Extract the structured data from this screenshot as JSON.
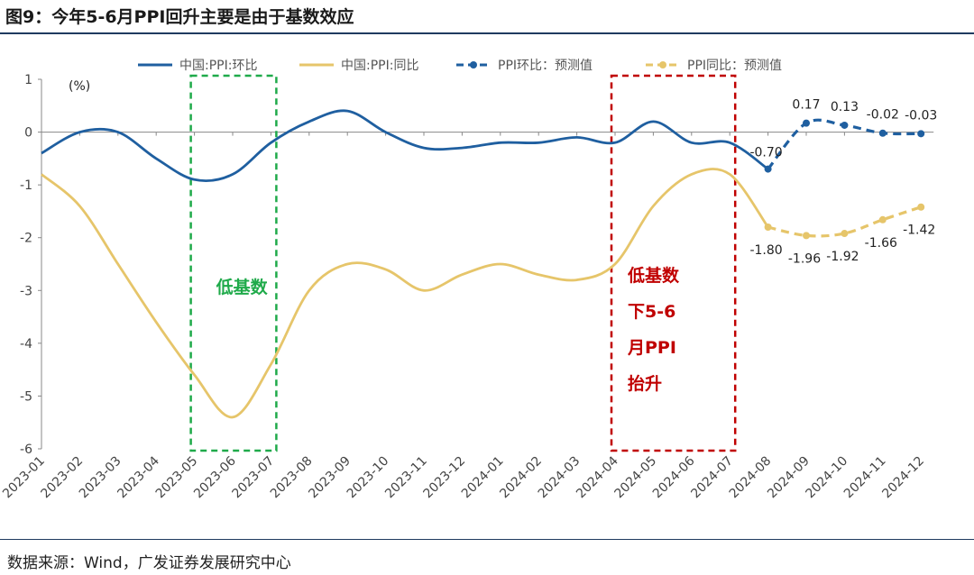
{
  "title": "图9：今年5-6月PPI回升主要是由于基数效应",
  "source": "数据来源：Wind，广发证券发展研究中心",
  "colors": {
    "mom": "#1f5fa0",
    "yoy": "#e6c56a",
    "green_box": "#1faa4a",
    "red_box": "#c00000"
  },
  "chart_data": {
    "type": "line",
    "unit_label": "(%)",
    "ylim": [
      -6,
      1
    ],
    "yticks": [
      1,
      0,
      -1,
      -2,
      -3,
      -4,
      -5,
      -6
    ],
    "categories": [
      "2023-01",
      "2023-02",
      "2023-03",
      "2023-04",
      "2023-05",
      "2023-06",
      "2023-07",
      "2023-08",
      "2023-09",
      "2023-10",
      "2023-11",
      "2023-12",
      "2024-01",
      "2024-02",
      "2024-03",
      "2024-04",
      "2024-05",
      "2024-06",
      "2024-07",
      "2024-08",
      "2024-09",
      "2024-10",
      "2024-11",
      "2024-12"
    ],
    "legend_position": "top",
    "series": [
      {
        "name": "中国:PPI:环比",
        "style": "solid",
        "color": "#1f5fa0",
        "values": [
          -0.4,
          0.0,
          0.0,
          -0.5,
          -0.9,
          -0.8,
          -0.2,
          0.2,
          0.4,
          0.0,
          -0.3,
          -0.3,
          -0.2,
          -0.2,
          -0.1,
          -0.2,
          0.2,
          -0.2,
          -0.2,
          -0.7,
          null,
          null,
          null,
          null
        ]
      },
      {
        "name": "中国:PPI:同比",
        "style": "solid",
        "color": "#e6c56a",
        "values": [
          -0.8,
          -1.4,
          -2.5,
          -3.6,
          -4.6,
          -5.4,
          -4.4,
          -3.0,
          -2.5,
          -2.6,
          -3.0,
          -2.7,
          -2.5,
          -2.7,
          -2.8,
          -2.5,
          -1.4,
          -0.8,
          -0.8,
          -1.8,
          null,
          null,
          null,
          null
        ]
      },
      {
        "name": "PPI环比：预测值",
        "style": "dashed",
        "color": "#1f5fa0",
        "values": [
          null,
          null,
          null,
          null,
          null,
          null,
          null,
          null,
          null,
          null,
          null,
          null,
          null,
          null,
          null,
          null,
          null,
          null,
          null,
          -0.7,
          0.17,
          0.13,
          -0.02,
          -0.03
        ]
      },
      {
        "name": "PPI同比：预测值",
        "style": "dashed",
        "color": "#e6c56a",
        "values": [
          null,
          null,
          null,
          null,
          null,
          null,
          null,
          null,
          null,
          null,
          null,
          null,
          null,
          null,
          null,
          null,
          null,
          null,
          null,
          -1.8,
          -1.96,
          -1.92,
          -1.66,
          -1.42
        ]
      }
    ],
    "data_labels": {
      "mom": [
        {
          "index": 19,
          "text": "-0.70"
        },
        {
          "index": 20,
          "text": "0.17"
        },
        {
          "index": 21,
          "text": "0.13"
        },
        {
          "index": 22,
          "text": "-0.02"
        },
        {
          "index": 23,
          "text": "-0.03"
        }
      ],
      "yoy": [
        {
          "index": 19,
          "text": "-1.80"
        },
        {
          "index": 20,
          "text": "-1.96"
        },
        {
          "index": 21,
          "text": "-1.92"
        },
        {
          "index": 22,
          "text": "-1.66"
        },
        {
          "index": 23,
          "text": "-1.42"
        }
      ]
    },
    "annotations": [
      {
        "id": "green",
        "text_lines": [
          "低基数"
        ],
        "from_category": "2023-05",
        "to_category": "2023-07"
      },
      {
        "id": "red",
        "text_lines": [
          "低基数",
          "下5-6",
          "月PPI",
          "抬升"
        ],
        "from_category": "2024-04",
        "to_category": "2024-07"
      }
    ]
  }
}
